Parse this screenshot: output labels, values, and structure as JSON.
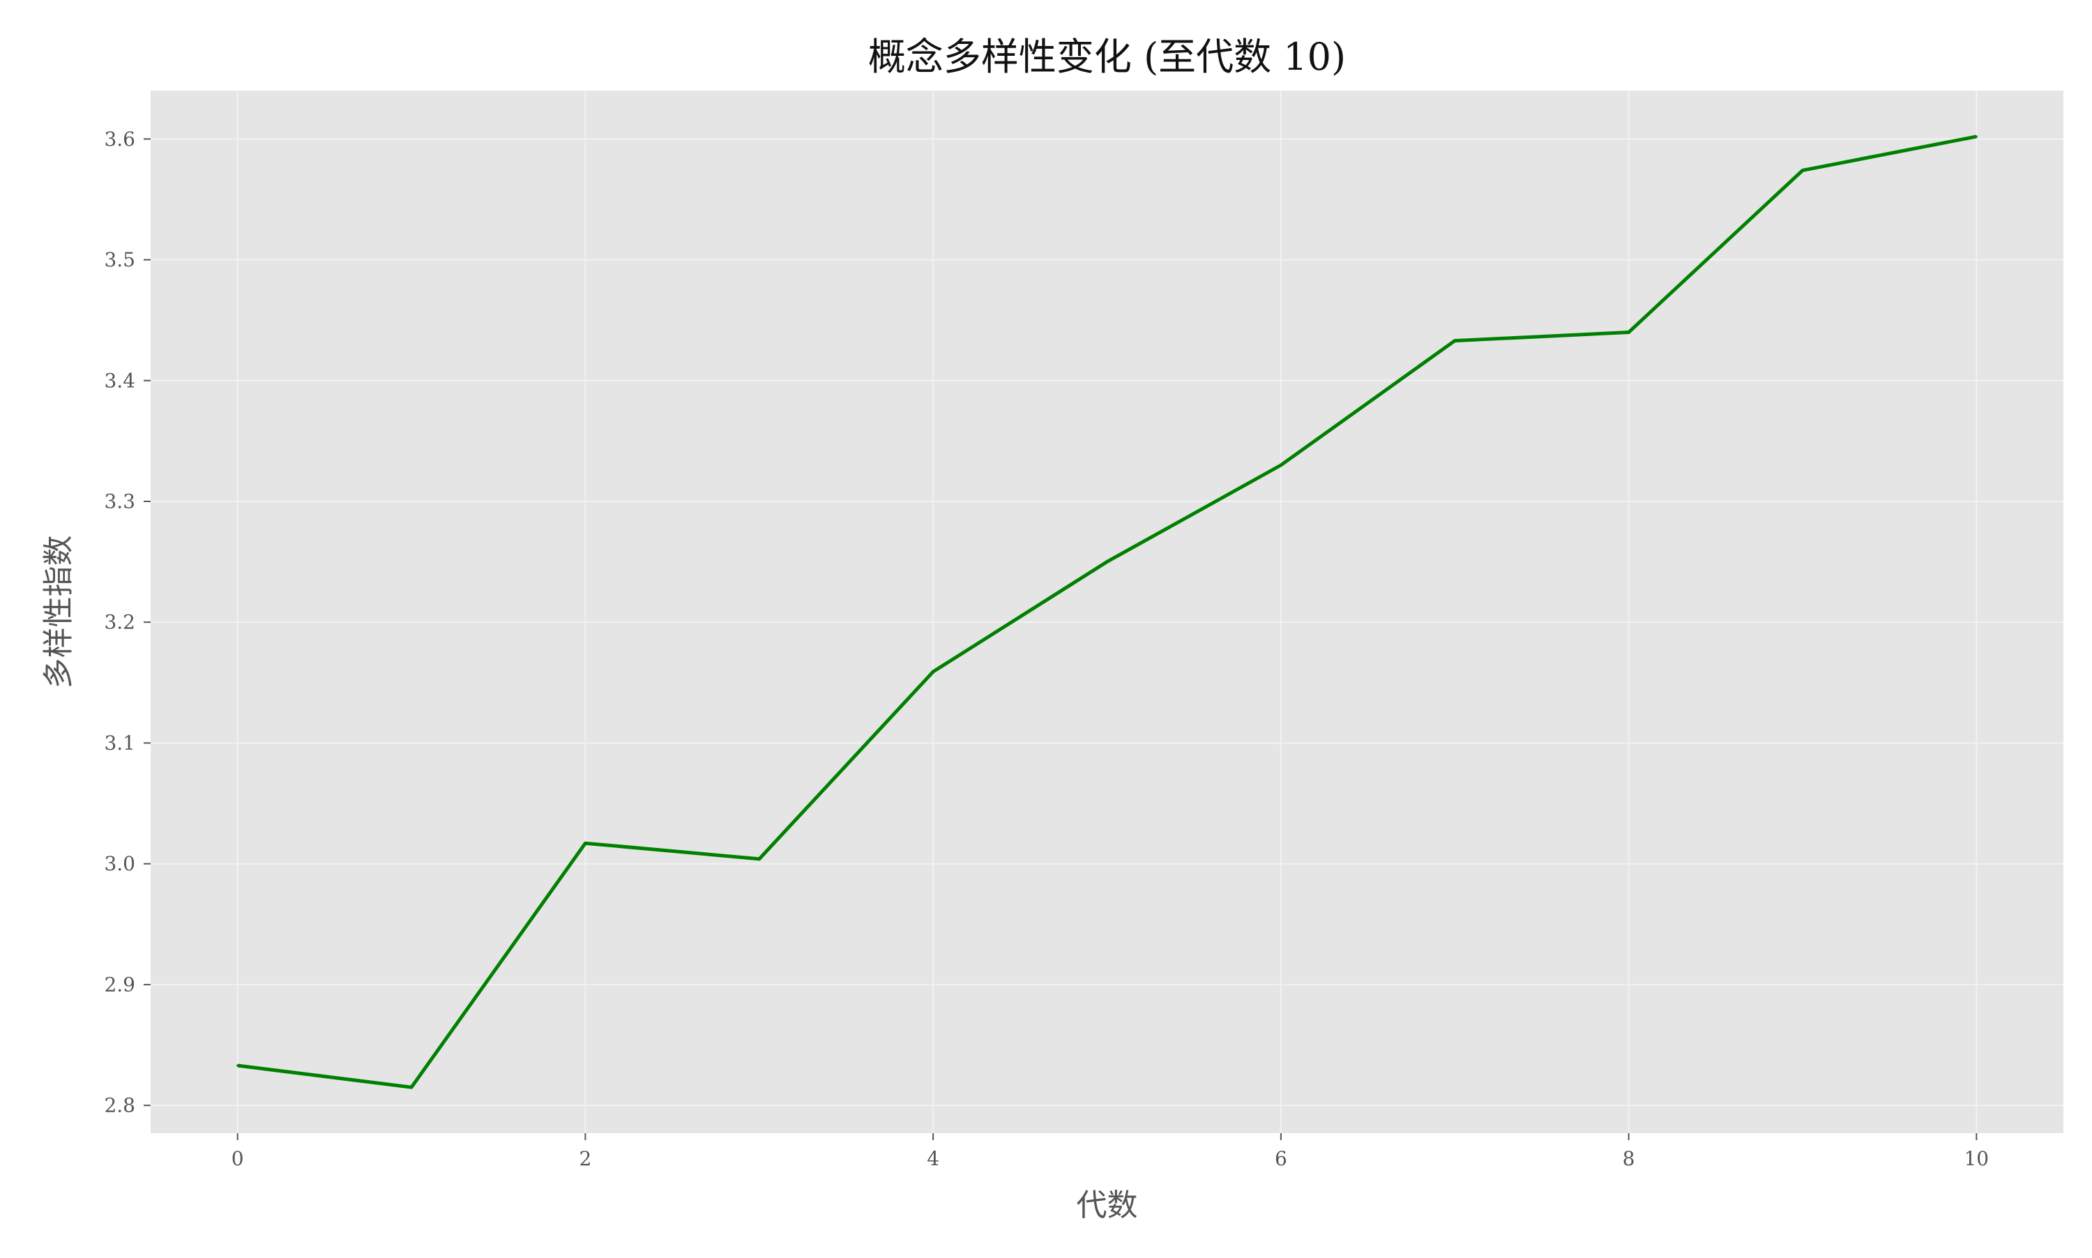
{
  "chart_data": {
    "type": "line",
    "title": "概念多样性变化 (至代数 10)",
    "xlabel": "代数",
    "ylabel": "多样性指数",
    "x": [
      0,
      1,
      2,
      3,
      4,
      5,
      6,
      7,
      8,
      9,
      10
    ],
    "series": [
      {
        "values": [
          2.833,
          2.815,
          3.017,
          3.004,
          3.159,
          3.25,
          3.33,
          3.433,
          3.44,
          3.574,
          3.602
        ]
      }
    ],
    "xticks": [
      0,
      2,
      4,
      6,
      8,
      10
    ],
    "xtick_labels": [
      "0",
      "2",
      "4",
      "6",
      "8",
      "10"
    ],
    "yticks": [
      2.8,
      2.9,
      3.0,
      3.1,
      3.2,
      3.3,
      3.4,
      3.5,
      3.6
    ],
    "ytick_labels": [
      "2.8",
      "2.9",
      "3.0",
      "3.1",
      "3.2",
      "3.3",
      "3.4",
      "3.5",
      "3.6"
    ],
    "xlim": [
      -0.5,
      10.5
    ],
    "ylim": [
      2.777,
      3.64
    ],
    "grid": true,
    "legend": "none",
    "colors": {
      "line": "#008000",
      "plot_background": "#e5e5e5",
      "grid": "#f2f2f2",
      "tick_text": "#555555",
      "axis_text": "#555555",
      "title_text": "#111111"
    }
  }
}
